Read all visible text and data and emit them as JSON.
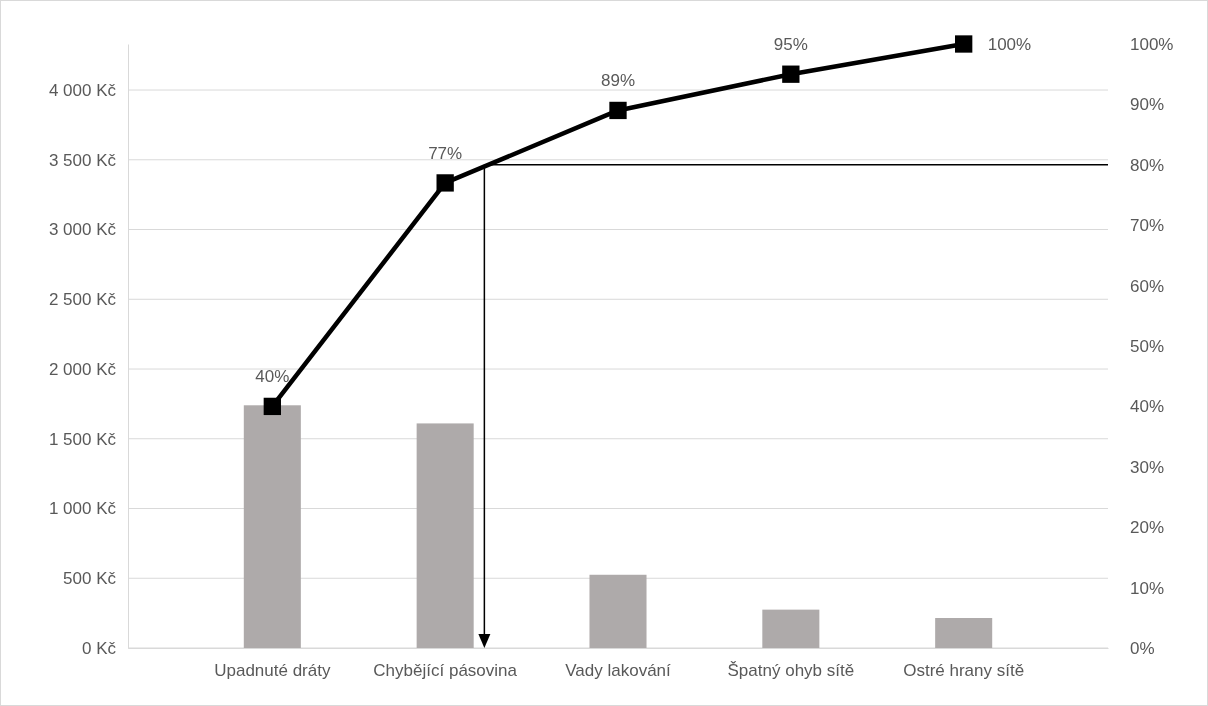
{
  "chart_data": {
    "type": "bar",
    "categories": [
      "Upadnuté dráty",
      "Chybějící pásovina",
      "Vady lakování",
      "Špatný ohyb sítě",
      "Ostré hrany sítě"
    ],
    "series": [
      {
        "color": "#aeaaaa",
        "values": [
          1740,
          1610,
          525,
          275,
          215
        ]
      },
      {
        "type": "line",
        "axis": "y2",
        "color": "#000000",
        "marker": "square",
        "values": [
          40,
          77,
          89,
          95,
          100
        ],
        "value_labels": [
          "40%",
          "77%",
          "89%",
          "95%",
          "100%"
        ]
      }
    ],
    "ylim": [
      0,
      4330
    ],
    "yticks": [
      {
        "value": 0,
        "label": "0 Kč"
      },
      {
        "value": 500,
        "label": "500 Kč"
      },
      {
        "value": 1000,
        "label": "1 000 Kč"
      },
      {
        "value": 1500,
        "label": "1 500 Kč"
      },
      {
        "value": 2000,
        "label": "2 000 Kč"
      },
      {
        "value": 2500,
        "label": "2 500 Kč"
      },
      {
        "value": 3000,
        "label": "3 000 Kč"
      },
      {
        "value": 3500,
        "label": "3 500 Kč"
      },
      {
        "value": 4000,
        "label": "4 000 Kč"
      }
    ],
    "y2lim": [
      0,
      100
    ],
    "y2ticks": [
      {
        "value": 0,
        "label": "0%"
      },
      {
        "value": 10,
        "label": "10%"
      },
      {
        "value": 20,
        "label": "20%"
      },
      {
        "value": 30,
        "label": "30%"
      },
      {
        "value": 40,
        "label": "40%"
      },
      {
        "value": 50,
        "label": "50%"
      },
      {
        "value": 60,
        "label": "60%"
      },
      {
        "value": 70,
        "label": "70%"
      },
      {
        "value": 80,
        "label": "80%"
      },
      {
        "value": 90,
        "label": "90%"
      },
      {
        "value": 100,
        "label": "100%"
      }
    ],
    "grid": "y",
    "ref_lines": [
      {
        "axis": "y2",
        "value": 80,
        "color": "#000000"
      }
    ]
  }
}
